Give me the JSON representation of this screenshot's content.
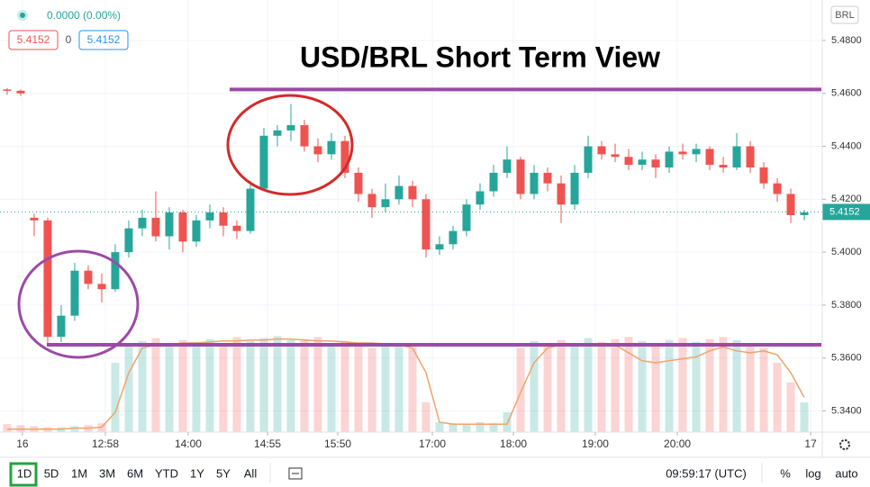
{
  "chart_data": {
    "type": "candlestick",
    "title": "USD/BRL Short Term View",
    "change": "0.0000 (0.00%)",
    "bid": "5.4152",
    "spread": "0",
    "ask": "5.4152",
    "currency": "BRL",
    "last_price": {
      "value": 5.4152,
      "label": "5.4152"
    },
    "up_color": "#26a69a",
    "down_color": "#ef5350",
    "open": [
      5.4615,
      5.461,
      5.413,
      5.412,
      5.368,
      5.376,
      5.393,
      5.388,
      5.386,
      5.4,
      5.409,
      5.413,
      5.406,
      5.415,
      5.404,
      5.412,
      5.415,
      5.41,
      5.408,
      5.424,
      5.444,
      5.446,
      5.448,
      5.44,
      5.437,
      5.442,
      5.43,
      5.422,
      5.417,
      5.42,
      5.425,
      5.42,
      5.401,
      5.403,
      5.408,
      5.418,
      5.423,
      5.43,
      5.435,
      5.422,
      5.43,
      5.426,
      5.418,
      5.43,
      5.44,
      5.437,
      5.436,
      5.433,
      5.435,
      5.432,
      5.438,
      5.437,
      5.439,
      5.433,
      5.432,
      5.44,
      5.432,
      5.426,
      5.422,
      5.414
    ],
    "high": [
      5.462,
      5.4615,
      5.4145,
      5.413,
      5.38,
      5.396,
      5.395,
      5.392,
      5.403,
      5.412,
      5.416,
      5.423,
      5.417,
      5.416,
      5.414,
      5.418,
      5.417,
      5.412,
      5.427,
      5.447,
      5.448,
      5.456,
      5.45,
      5.443,
      5.445,
      5.444,
      5.432,
      5.424,
      5.426,
      5.429,
      5.427,
      5.422,
      5.406,
      5.41,
      5.42,
      5.426,
      5.433,
      5.44,
      5.436,
      5.433,
      5.432,
      5.429,
      5.433,
      5.444,
      5.442,
      5.441,
      5.439,
      5.438,
      5.437,
      5.44,
      5.441,
      5.441,
      5.44,
      5.436,
      5.445,
      5.442,
      5.434,
      5.428,
      5.424,
      5.416
    ],
    "low": [
      5.4595,
      5.459,
      5.406,
      5.365,
      5.366,
      5.374,
      5.386,
      5.381,
      5.385,
      5.398,
      5.406,
      5.404,
      5.401,
      5.4,
      5.402,
      5.409,
      5.406,
      5.405,
      5.407,
      5.423,
      5.44,
      5.442,
      5.438,
      5.434,
      5.435,
      5.428,
      5.419,
      5.413,
      5.415,
      5.418,
      5.417,
      5.398,
      5.399,
      5.401,
      5.406,
      5.416,
      5.421,
      5.428,
      5.42,
      5.42,
      5.423,
      5.411,
      5.416,
      5.428,
      5.435,
      5.434,
      5.431,
      5.431,
      5.428,
      5.43,
      5.435,
      5.434,
      5.431,
      5.43,
      5.431,
      5.43,
      5.424,
      5.419,
      5.411,
      5.412
    ],
    "close": [
      5.461,
      5.46,
      5.412,
      5.368,
      5.376,
      5.393,
      5.388,
      5.386,
      5.4,
      5.409,
      5.413,
      5.406,
      5.415,
      5.404,
      5.412,
      5.415,
      5.41,
      5.408,
      5.424,
      5.444,
      5.446,
      5.448,
      5.44,
      5.437,
      5.442,
      5.43,
      5.422,
      5.417,
      5.42,
      5.425,
      5.42,
      5.401,
      5.403,
      5.408,
      5.418,
      5.423,
      5.43,
      5.435,
      5.422,
      5.43,
      5.426,
      5.418,
      5.43,
      5.44,
      5.437,
      5.436,
      5.433,
      5.435,
      5.432,
      5.438,
      5.437,
      5.439,
      5.433,
      5.432,
      5.44,
      5.432,
      5.426,
      5.422,
      5.414,
      5.415
    ],
    "volume": [
      8,
      7,
      6,
      5,
      5,
      6,
      7,
      9,
      70,
      88,
      92,
      95,
      90,
      93,
      91,
      94,
      89,
      96,
      92,
      95,
      97,
      93,
      94,
      96,
      90,
      92,
      88,
      85,
      89,
      90,
      86,
      30,
      10,
      9,
      8,
      10,
      9,
      20,
      85,
      92,
      90,
      93,
      88,
      95,
      91,
      94,
      96,
      92,
      90,
      93,
      95,
      91,
      94,
      96,
      93,
      90,
      85,
      70,
      50,
      30
    ],
    "volume_ma": [
      3,
      3,
      3,
      3,
      3,
      4,
      4,
      5,
      20,
      60,
      85,
      88,
      88,
      90,
      90,
      91,
      92,
      92,
      93,
      93,
      94,
      94,
      93,
      92,
      92,
      91,
      90,
      90,
      89,
      88,
      85,
      60,
      10,
      8,
      8,
      8,
      8,
      8,
      40,
      70,
      85,
      88,
      88,
      89,
      89,
      88,
      80,
      72,
      70,
      72,
      74,
      76,
      82,
      86,
      82,
      80,
      82,
      78,
      60,
      35
    ],
    "volume_ma_color": "#f0a36a",
    "xlim": [
      -0.53,
      60.33
    ],
    "xticks": [
      {
        "value": 1.13,
        "label": "16"
      },
      {
        "value": 7.27,
        "label": "12:58"
      },
      {
        "value": 13.4,
        "label": "14:00"
      },
      {
        "value": 19.27,
        "label": "14:55"
      },
      {
        "value": 24.47,
        "label": "15:50"
      },
      {
        "value": 31.47,
        "label": "17:00"
      },
      {
        "value": 37.47,
        "label": "18:00"
      },
      {
        "value": 43.53,
        "label": "19:00"
      },
      {
        "value": 49.6,
        "label": "20:00"
      },
      {
        "value": 59.47,
        "label": "17"
      }
    ],
    "ylim": [
      5.332,
      5.4953
    ],
    "yticks": [
      {
        "value": 5.48,
        "label": "5.4800"
      },
      {
        "value": 5.46,
        "label": "5.4600"
      },
      {
        "value": 5.44,
        "label": "5.4400"
      },
      {
        "value": 5.42,
        "label": "5.4200"
      },
      {
        "value": 5.4,
        "label": "5.4000"
      },
      {
        "value": 5.38,
        "label": "5.3800"
      },
      {
        "value": 5.36,
        "label": "5.3600"
      },
      {
        "value": 5.34,
        "label": "5.3400"
      }
    ],
    "grid": true,
    "levels": [
      {
        "value": 5.4615,
        "color": "#9b4aa6"
      },
      {
        "value": 5.365,
        "color": "#9b4aa6"
      }
    ]
  },
  "toolbar": {
    "ranges": [
      "1D",
      "5D",
      "1M",
      "3M",
      "6M",
      "YTD",
      "1Y",
      "5Y",
      "All"
    ],
    "clock": "09:59:17 (UTC)",
    "options": [
      "%",
      "log",
      "auto"
    ]
  }
}
